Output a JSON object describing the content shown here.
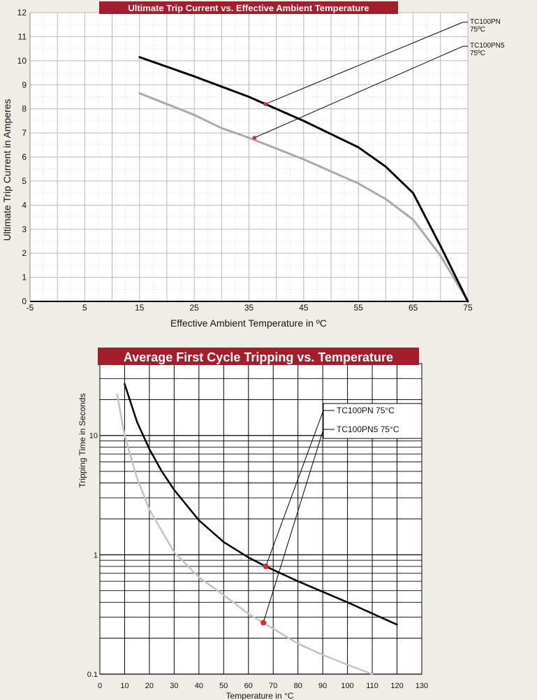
{
  "chart_data": [
    {
      "type": "line",
      "title": "Ultimate Trip Current vs. Effective Ambient Temperature",
      "xlabel": "Effective Ambient Temperature in ºC",
      "ylabel": "Ultimate Trip Current in Amperes",
      "xlim": [
        -5,
        75
      ],
      "ylim": [
        0,
        12
      ],
      "x_ticks": [
        -5,
        5,
        15,
        25,
        35,
        45,
        55,
        65,
        75
      ],
      "y_ticks": [
        0,
        1,
        2,
        3,
        4,
        5,
        6,
        7,
        8,
        9,
        10,
        11,
        12
      ],
      "grid": true,
      "colors": {
        "title_bg": "#a31d2b",
        "series_1": "#000000",
        "series_2": "#a9a9a9",
        "marker": "#e8252d"
      },
      "series": [
        {
          "name": "TC100PN 75ºC",
          "name_lines": [
            "TC100PN",
            "75ºC"
          ],
          "x": [
            15,
            25,
            35,
            45,
            55,
            60,
            65,
            70,
            75
          ],
          "y": [
            10.15,
            9.35,
            8.5,
            7.5,
            6.4,
            5.6,
            4.5,
            2.3,
            0
          ]
        },
        {
          "name": "TC100PN5 75ºC",
          "name_lines": [
            "TC100PN5",
            "75ºC"
          ],
          "x": [
            15,
            20,
            25,
            30,
            35,
            45,
            55,
            60,
            65,
            70,
            75
          ],
          "y": [
            8.65,
            8.2,
            7.75,
            7.2,
            6.8,
            5.9,
            4.9,
            4.25,
            3.4,
            1.9,
            0
          ]
        }
      ],
      "annotations": [
        {
          "series": "TC100PN 75ºC",
          "point": [
            38,
            8.2
          ],
          "label_at": [
            75,
            11.6
          ]
        },
        {
          "series": "TC100PN5 75ºC",
          "point": [
            36,
            6.8
          ],
          "label_at": [
            75,
            10.6
          ]
        }
      ]
    },
    {
      "type": "line",
      "title": "Average First Cycle Tripping vs. Temperature",
      "xlabel": "Temperature in °C",
      "ylabel": "Tripping Time in Seconds",
      "xlim": [
        0,
        130
      ],
      "ylim": [
        0.1,
        40
      ],
      "log_y": true,
      "x_ticks": [
        0,
        10,
        20,
        30,
        40,
        50,
        60,
        70,
        80,
        90,
        100,
        110,
        120,
        130
      ],
      "y_ticks": [
        0.1,
        1,
        10
      ],
      "y_tick_labels": [
        "0.1",
        "1",
        "10"
      ],
      "grid": true,
      "colors": {
        "title_bg": "#a31d2b",
        "series_1": "#000000",
        "series_2": "#c2c2c2",
        "marker": "#e8252d"
      },
      "legend": {
        "placement": "top-right",
        "entries": [
          "TC100PN 75°C",
          "TC100PN5 75°C"
        ]
      },
      "series": [
        {
          "name": "TC100PN 75°C",
          "x": [
            10,
            15,
            20,
            25,
            30,
            40,
            50,
            60,
            67,
            80,
            100,
            120
          ],
          "y": [
            27,
            13,
            7.7,
            5.0,
            3.5,
            1.95,
            1.28,
            0.95,
            0.8,
            0.6,
            0.4,
            0.26
          ]
        },
        {
          "name": "TC100PN5 75°C",
          "x": [
            7,
            10,
            15,
            20,
            30,
            40,
            50,
            60,
            66,
            80,
            90,
            100,
            110
          ],
          "y": [
            22,
            10,
            4.4,
            2.4,
            1.05,
            0.65,
            0.46,
            0.32,
            0.27,
            0.18,
            0.145,
            0.12,
            0.1
          ]
        }
      ],
      "annotations": [
        {
          "series": "TC100PN 75°C",
          "point": [
            67,
            0.8
          ],
          "label_at": [
            91,
            16.6
          ]
        },
        {
          "series": "TC100PN5 75°C",
          "point": [
            66,
            0.27
          ],
          "label_at": [
            91,
            12.1
          ]
        }
      ]
    }
  ]
}
